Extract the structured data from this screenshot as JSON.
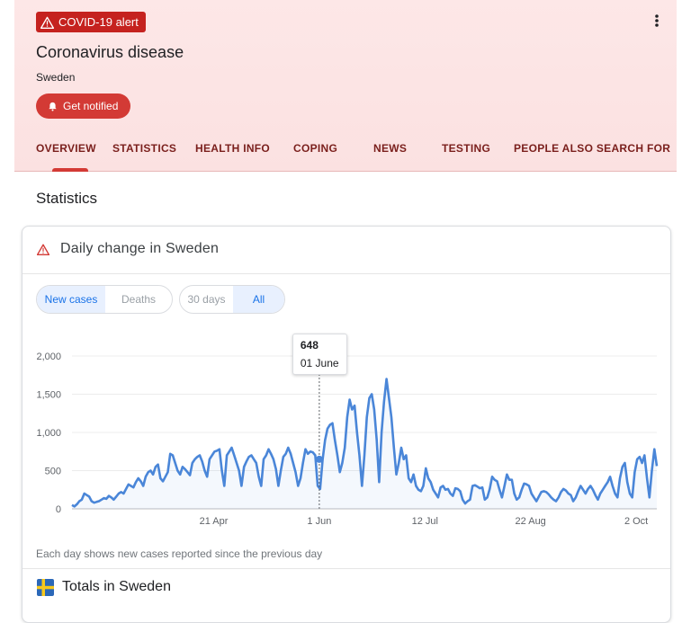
{
  "header": {
    "alert_label": "COVID-19 alert",
    "title": "Coronavirus disease",
    "country": "Sweden",
    "notify_label": "Get notified",
    "tabs": [
      {
        "label": "OVERVIEW",
        "active": true
      },
      {
        "label": "STATISTICS"
      },
      {
        "label": "HEALTH INFO"
      },
      {
        "label": "COPING"
      },
      {
        "label": "NEWS"
      },
      {
        "label": "TESTING"
      },
      {
        "label": "PEOPLE ALSO SEARCH FOR"
      }
    ]
  },
  "section_title": "Statistics",
  "card": {
    "title": "Daily change in Sweden",
    "metric_toggle": {
      "options": [
        "New cases",
        "Deaths"
      ],
      "selected": "New cases"
    },
    "range_toggle": {
      "options": [
        "30 days",
        "All"
      ],
      "selected": "All"
    },
    "note": "Each day shows new cases reported since the previous day",
    "tooltip": {
      "value": "648",
      "date": "01 June"
    }
  },
  "totals": {
    "title": "Totals in Sweden"
  },
  "colors": {
    "accent_red": "#d33a35",
    "line_blue": "#4a86d8",
    "header_bg": "#fde7e7"
  },
  "icons": {
    "alert": "warning-icon",
    "more": "more-vert-icon",
    "notify": "bell-icon",
    "flag": "sweden-flag-icon"
  },
  "chart_data": {
    "type": "line",
    "title": "",
    "x_start": "2020-02-26",
    "x_end": "2020-10-10",
    "x_ticks": [
      {
        "date": "2020-04-21",
        "label": "21 Apr"
      },
      {
        "date": "2020-06-01",
        "label": "1 Jun"
      },
      {
        "date": "2020-07-12",
        "label": "12 Jul"
      },
      {
        "date": "2020-08-22",
        "label": "22 Aug"
      },
      {
        "date": "2020-10-02",
        "label": "2 Oct"
      }
    ],
    "y_ticks": [
      {
        "value": 0,
        "label": "0"
      },
      {
        "value": 500,
        "label": "500"
      },
      {
        "value": 1000,
        "label": "1,000"
      },
      {
        "value": 1500,
        "label": "1,500"
      },
      {
        "value": 2000,
        "label": "2,000"
      }
    ],
    "ylim": [
      0,
      2000
    ],
    "grid": true,
    "highlight": {
      "date": "2020-06-01",
      "value": 648
    },
    "series": [
      {
        "values": [
          50,
          30,
          60,
          100,
          120,
          200,
          180,
          160,
          100,
          80,
          90,
          100,
          120,
          140,
          130,
          170,
          150,
          120,
          160,
          200,
          220,
          200,
          260,
          320,
          300,
          280,
          350,
          400,
          360,
          300,
          420,
          480,
          500,
          450,
          550,
          580,
          400,
          360,
          420,
          480,
          720,
          700,
          600,
          500,
          450,
          550,
          520,
          480,
          440,
          600,
          650,
          680,
          700,
          620,
          500,
          420,
          650,
          700,
          750,
          760,
          780,
          500,
          300,
          700,
          750,
          800,
          700,
          600,
          500,
          300,
          550,
          620,
          680,
          700,
          650,
          600,
          420,
          300,
          650,
          700,
          780,
          720,
          650,
          520,
          300,
          500,
          680,
          720,
          800,
          720,
          600,
          480,
          300,
          400,
          600,
          780,
          720,
          750,
          740,
          700,
          300,
          260,
          648,
          900,
          1050,
          1100,
          1120,
          900,
          700,
          480,
          600,
          800,
          1200,
          1430,
          1300,
          1350,
          1000,
          700,
          300,
          700,
          1200,
          1450,
          1500,
          1300,
          900,
          350,
          1000,
          1400,
          1700,
          1450,
          1200,
          800,
          450,
          600,
          800,
          650,
          700,
          400,
          350,
          450,
          300,
          250,
          230,
          300,
          530,
          400,
          350,
          250,
          200,
          150,
          280,
          300,
          250,
          260,
          200,
          170,
          270,
          260,
          230,
          120,
          70,
          100,
          120,
          300,
          310,
          290,
          270,
          280,
          120,
          150,
          260,
          420,
          380,
          360,
          250,
          150,
          300,
          450,
          380,
          380,
          200,
          120,
          150,
          250,
          330,
          320,
          300,
          200,
          150,
          100,
          160,
          220,
          230,
          220,
          190,
          150,
          120,
          100,
          150,
          220,
          260,
          240,
          200,
          180,
          100,
          150,
          230,
          300,
          250,
          200,
          260,
          300,
          250,
          180,
          120,
          200,
          250,
          300,
          350,
          420,
          300,
          200,
          150,
          400,
          550,
          600,
          350,
          200,
          150,
          480,
          650,
          680,
          600,
          700,
          400,
          150,
          500,
          780,
          560
        ]
      }
    ]
  }
}
